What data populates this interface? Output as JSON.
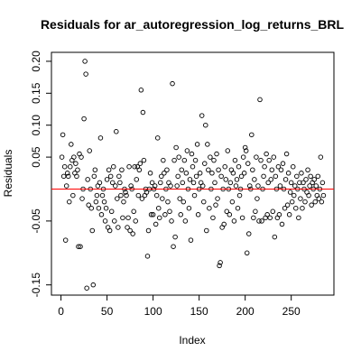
{
  "chart_data": {
    "type": "scatter",
    "title": "Residuals for ar_autoregression_log_returns_BRL",
    "x_label": "Index",
    "y_label": "Residuals",
    "x": [
      1,
      2,
      3,
      4,
      5,
      6,
      7,
      8,
      9,
      10,
      11,
      12,
      13,
      14,
      15,
      16,
      17,
      18,
      19,
      20,
      21,
      22,
      23,
      24,
      25,
      26,
      27,
      28,
      29,
      30,
      31,
      32,
      33,
      34,
      35,
      36,
      37,
      38,
      39,
      40,
      41,
      42,
      43,
      44,
      45,
      46,
      47,
      48,
      49,
      50,
      51,
      52,
      53,
      54,
      55,
      56,
      57,
      58,
      59,
      60,
      61,
      62,
      63,
      64,
      65,
      66,
      67,
      68,
      69,
      70,
      71,
      72,
      73,
      74,
      75,
      76,
      77,
      78,
      79,
      80,
      81,
      82,
      83,
      84,
      85,
      86,
      87,
      88,
      89,
      90,
      91,
      92,
      93,
      94,
      95,
      96,
      97,
      98,
      99,
      100,
      101,
      102,
      103,
      104,
      105,
      106,
      107,
      108,
      109,
      110,
      111,
      112,
      113,
      114,
      115,
      116,
      117,
      118,
      119,
      120,
      121,
      122,
      123,
      124,
      125,
      126,
      127,
      128,
      129,
      130,
      131,
      132,
      133,
      134,
      135,
      136,
      137,
      138,
      139,
      140,
      141,
      142,
      143,
      144,
      145,
      146,
      147,
      148,
      149,
      150,
      151,
      152,
      153,
      154,
      155,
      156,
      157,
      158,
      159,
      160,
      161,
      162,
      163,
      164,
      165,
      166,
      167,
      168,
      169,
      170,
      171,
      172,
      173,
      174,
      175,
      176,
      177,
      178,
      179,
      180,
      181,
      182,
      183,
      184,
      185,
      186,
      187,
      188,
      189,
      190,
      191,
      192,
      193,
      194,
      195,
      196,
      197,
      198,
      199,
      200,
      201,
      202,
      203,
      204,
      205,
      206,
      207,
      208,
      209,
      210,
      211,
      212,
      213,
      214,
      215,
      216,
      217,
      218,
      219,
      220,
      221,
      222,
      223,
      224,
      225,
      226,
      227,
      228,
      229,
      230,
      231,
      232,
      233,
      234,
      235,
      236,
      237,
      238,
      239,
      240,
      241,
      242,
      243,
      244,
      245,
      246,
      247,
      248,
      249,
      250,
      251,
      252,
      253,
      254,
      255,
      256,
      257,
      258,
      259,
      260,
      261,
      262,
      263,
      264,
      265,
      266,
      267,
      268,
      269,
      270,
      271,
      272,
      273,
      274,
      275,
      276,
      277,
      278,
      279,
      280,
      281,
      282,
      283,
      284,
      285
    ],
    "series": [
      {
        "name": "Residuals",
        "color": "#000000",
        "values": [
          0.05,
          0.085,
          0.02,
          0.035,
          -0.08,
          0.005,
          0.025,
          0.02,
          -0.02,
          0.035,
          0.07,
          0.045,
          -0.01,
          0.05,
          0.025,
          0.04,
          0.02,
          0.03,
          -0.09,
          0.055,
          -0.09,
          0.05,
          -0.015,
          0.0,
          0.11,
          0.2,
          0.18,
          -0.155,
          0.015,
          -0.025,
          0.06,
          0.0,
          -0.03,
          -0.065,
          -0.15,
          0.02,
          0.03,
          -0.02,
          -0.01,
          0.005,
          -0.03,
          0.01,
          0.08,
          -0.04,
          -0.01,
          0.0,
          -0.02,
          -0.05,
          -0.03,
          0.015,
          -0.06,
          0.03,
          -0.065,
          0.02,
          -0.035,
          0.01,
          0.035,
          -0.05,
          0.005,
          0.09,
          -0.015,
          -0.06,
          0.02,
          0.01,
          -0.01,
          0.03,
          -0.045,
          -0.02,
          0.0,
          -0.005,
          -0.01,
          -0.06,
          -0.045,
          0.035,
          -0.065,
          0.005,
          0.0,
          -0.07,
          -0.035,
          0.035,
          -0.05,
          0.015,
          0.035,
          -0.01,
          0.03,
          0.04,
          0.155,
          -0.015,
          0.12,
          0.045,
          -0.01,
          0.0,
          -0.005,
          -0.105,
          -0.065,
          0.0,
          0.025,
          -0.04,
          0.01,
          -0.04,
          0.0,
          0.005,
          -0.055,
          -0.01,
          0.08,
          -0.03,
          -0.045,
          0.01,
          0.02,
          -0.015,
          0.045,
          0.025,
          -0.04,
          0.0,
          0.03,
          -0.02,
          0.01,
          -0.035,
          0.005,
          -0.05,
          0.165,
          -0.09,
          0.045,
          -0.075,
          0.065,
          0.005,
          0.02,
          0.05,
          -0.015,
          -0.04,
          0.03,
          0.01,
          -0.02,
          0.045,
          -0.05,
          0.025,
          0.06,
          0.0,
          -0.03,
          0.015,
          -0.08,
          0.055,
          0.035,
          0.01,
          -0.01,
          0.045,
          0.02,
          0.07,
          -0.04,
          0.0,
          0.025,
          0.01,
          0.115,
          0.005,
          -0.02,
          0.04,
          0.1,
          -0.065,
          0.07,
          0.03,
          -0.03,
          0.05,
          0.0,
          0.025,
          -0.045,
          0.045,
          0.01,
          -0.025,
          0.055,
          -0.015,
          0.03,
          -0.12,
          -0.115,
          0.02,
          -0.06,
          0.0,
          -0.055,
          0.035,
          0.015,
          -0.035,
          0.06,
          0.0,
          -0.04,
          0.01,
          0.03,
          -0.02,
          0.025,
          -0.05,
          0.045,
          0.005,
          0.015,
          -0.03,
          0.035,
          -0.01,
          0.0,
          0.02,
          -0.045,
          0.05,
          0.025,
          0.065,
          0.06,
          -0.1,
          0.04,
          -0.07,
          0.005,
          0.0,
          0.085,
          0.03,
          -0.045,
          0.015,
          -0.035,
          0.05,
          -0.015,
          0.005,
          -0.05,
          0.14,
          0.045,
          -0.05,
          0.0,
          0.02,
          0.035,
          -0.045,
          0.055,
          -0.04,
          0.01,
          0.045,
          -0.045,
          0.015,
          0.03,
          -0.035,
          0.05,
          -0.075,
          0.02,
          0.0,
          -0.045,
          0.035,
          -0.04,
          0.005,
          0.03,
          -0.055,
          0.04,
          0.0,
          -0.03,
          0.015,
          0.055,
          -0.025,
          0.025,
          -0.04,
          -0.005,
          0.01,
          -0.02,
          0.035,
          -0.01,
          0.005,
          -0.03,
          0.02,
          0.0,
          -0.045,
          0.01,
          -0.015,
          0.025,
          -0.03,
          0.01,
          0.0,
          -0.02,
          0.015,
          -0.005,
          0.03,
          -0.01,
          0.005,
          0.02,
          -0.025,
          0.01,
          0.0,
          0.015,
          -0.02,
          0.005,
          -0.01,
          0.02,
          -0.015,
          0.0,
          0.05,
          -0.02,
          0.01,
          -0.01
        ]
      }
    ],
    "xlim": [
      -10.36,
      296.36
    ],
    "xticks": [
      0,
      50,
      100,
      150,
      200,
      250
    ],
    "ylim": [
      -0.166,
      0.214
    ],
    "yticks": [
      {
        "value": -0.15,
        "label": "-0.15"
      },
      {
        "value": -0.05,
        "label": "-0.05"
      },
      {
        "value": 0.05,
        "label": "0.05"
      },
      {
        "value": 0.1,
        "label": "0.10"
      },
      {
        "value": 0.15,
        "label": "0.15"
      },
      {
        "value": 0.2,
        "label": "0.20"
      }
    ],
    "reference_line": {
      "value": 0,
      "color": "#ff0000"
    }
  }
}
